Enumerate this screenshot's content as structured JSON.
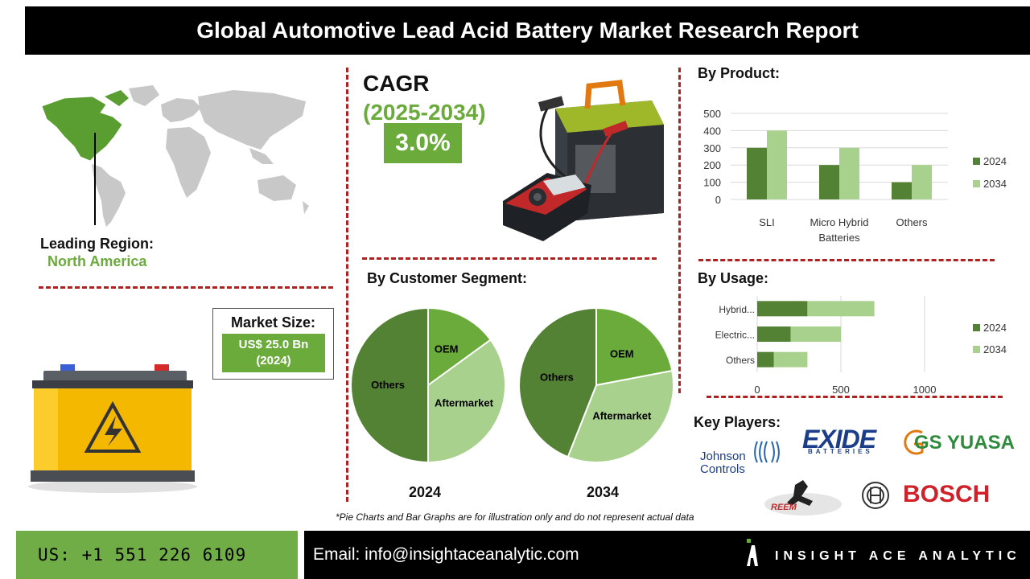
{
  "title": "Global Automotive Lead Acid Battery Market Research Report",
  "region": {
    "label": "Leading Region:",
    "value": "North America"
  },
  "cagr": {
    "label": "CAGR",
    "period": "(2025-2034)",
    "value": "3.0%"
  },
  "market_size": {
    "label": "Market Size:",
    "value_line1": "US$ 25.0 Bn",
    "value_line2": "(2024)"
  },
  "customer_segment": {
    "title": "By Customer Segment:"
  },
  "by_product": {
    "title": "By Product:"
  },
  "by_usage": {
    "title": "By Usage:"
  },
  "key_players": {
    "title": "Key Players:",
    "logos": [
      "Johnson Controls",
      "EXIDE",
      "BATTERIES",
      "GS YUASA",
      "REEM",
      "BOSCH"
    ]
  },
  "disclaimer": "*Pie Charts and Bar Graphs are for illustration only and do not represent actual data",
  "footer": {
    "phone": "US: +1 551 226 6109",
    "email": "Email: info@insightaceanalytic.com",
    "brand": "INSIGHT ACE ANALYTIC"
  },
  "colors": {
    "dark_green": "#548235",
    "light_green": "#a9d18e",
    "accent_green": "#6aab3c",
    "dash_red": "#b02020"
  },
  "chart_data": [
    {
      "type": "bar",
      "orientation": "vertical",
      "categories": [
        "SLI",
        "Micro Hybrid Batteries",
        "Others"
      ],
      "series": [
        {
          "name": "2024",
          "values": [
            300,
            200,
            100
          ]
        },
        {
          "name": "2034",
          "values": [
            400,
            300,
            200
          ]
        }
      ],
      "ylim": [
        0,
        500
      ],
      "yticks": [
        "0",
        "100",
        "200",
        "300",
        "400",
        "500"
      ],
      "grid": true,
      "legend": "right"
    },
    {
      "type": "bar",
      "orientation": "horizontal",
      "categories": [
        "Hybrid...",
        "Electric...",
        "Others"
      ],
      "series": [
        {
          "name": "2024",
          "values": [
            300,
            200,
            100
          ]
        },
        {
          "name": "2034",
          "values": [
            400,
            300,
            200
          ]
        }
      ],
      "stacked": true,
      "xlim": [
        0,
        1000
      ],
      "xticks": [
        "0",
        "500",
        "1000"
      ],
      "grid": true,
      "legend": "right"
    },
    {
      "type": "pie",
      "year": "2024",
      "labels": [
        "OEM",
        "Aftermarket",
        "Others"
      ],
      "values": [
        15,
        35,
        50
      ]
    },
    {
      "type": "pie",
      "year": "2034",
      "labels": [
        "OEM",
        "Aftermarket",
        "Others"
      ],
      "values": [
        22,
        34,
        44
      ]
    }
  ]
}
